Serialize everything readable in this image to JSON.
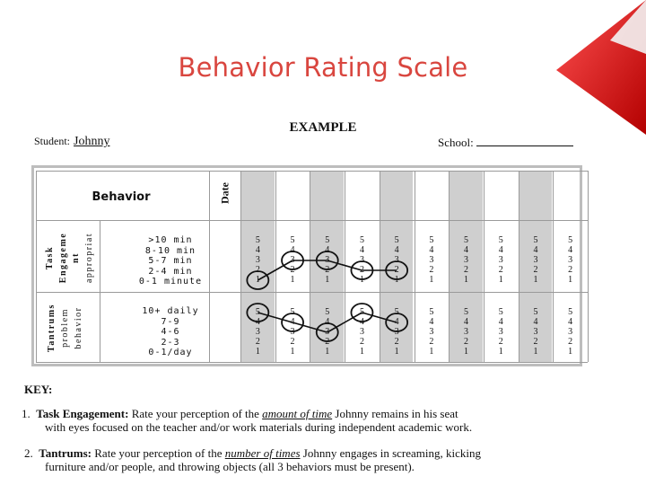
{
  "title": "Behavior Rating Scale",
  "form": {
    "heading": "EXAMPLE",
    "student_label": "Student:",
    "student_name": "Johnny",
    "school_label": "School:"
  },
  "table": {
    "behavior_header": "Behavior",
    "date_header": "Date",
    "rows": [
      {
        "label_lines": [
          "Task",
          "Engageme",
          "nt",
          "appropriat"
        ],
        "criteria": [
          ">10 min",
          "8-10 min",
          "5-7 min",
          "2-4 min",
          "0-1 minute"
        ],
        "ratings": [
          1,
          3,
          3,
          2,
          2,
          null,
          null,
          null,
          null,
          null
        ]
      },
      {
        "label_lines": [
          "Tantrums",
          "problem",
          "behavior"
        ],
        "criteria": [
          "10+ daily",
          "7-9",
          "4-6",
          "2-3",
          "0-1/day"
        ],
        "ratings": [
          5,
          4,
          3,
          5,
          4,
          null,
          null,
          null,
          null,
          null
        ]
      }
    ],
    "scale": [
      "5",
      "4",
      "3",
      "2",
      "1"
    ],
    "column_count": 10
  },
  "key": {
    "label": "KEY:",
    "item1_num": "1.",
    "item1_term": "Task Engagement:",
    "item1_pre": "Rate your perception of the",
    "item1_em": "amount of time",
    "item1_post": "Johnny remains in his seat",
    "item1_line2": "with eyes focused on the teacher and/or work materials during independent academic work.",
    "item2_num": "2.",
    "item2_term": "Tantrums:",
    "item2_pre": "Rate your perception of the",
    "item2_em": "number of times",
    "item2_post": "Johnny engages in screaming, kicking",
    "item2_line2": "furniture and/or people, and throwing objects (all 3 behaviors must be present)."
  },
  "colors": {
    "title": "#d9463f",
    "accent": "#e02626"
  }
}
